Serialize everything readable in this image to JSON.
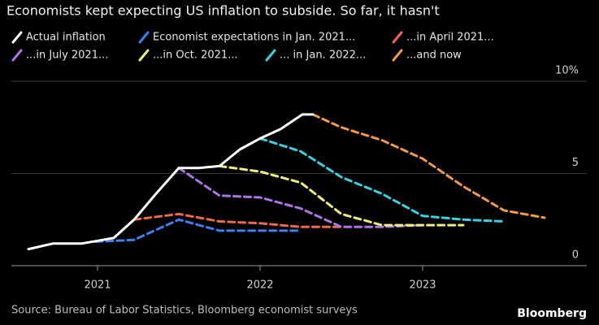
{
  "chart_data": {
    "type": "line",
    "title": "Economists kept expecting US inflation to subside. So far, it hasn't",
    "source": "Source: Bureau of Labor Statistics, Bloomberg economist surveys",
    "brand": "Bloomberg",
    "xlim": [
      2020.5,
      2023.9
    ],
    "xticks": [
      2021,
      2022,
      2023
    ],
    "ylim": [
      0,
      10
    ],
    "yticks": [
      0,
      5,
      {
        "value": 10,
        "label": "10%"
      }
    ],
    "grid": true,
    "series": [
      {
        "name": "Actual inflation",
        "color": "#ffffff",
        "line_style": "solid",
        "x": [
          2020.575,
          2020.725,
          2020.9,
          2021.1,
          2021.225,
          2021.35,
          2021.5,
          2021.625,
          2021.75,
          2021.875,
          2022.0,
          2022.125,
          2022.26,
          2022.325
        ],
        "values": [
          0.9,
          1.2,
          1.2,
          1.5,
          2.5,
          3.8,
          5.3,
          5.3,
          5.4,
          6.3,
          6.9,
          7.4,
          8.2,
          8.2
        ]
      },
      {
        "name": "Economist expectations in Jan. 2021...",
        "color": "#3d7ff0",
        "line_style": "dashed",
        "x": [
          2020.99,
          2021.225,
          2021.5,
          2021.75,
          2022.25
        ],
        "values": [
          1.3,
          1.4,
          2.5,
          1.9,
          1.9
        ]
      },
      {
        "name": "...in April 2021...",
        "color": "#f06a4a",
        "line_style": "dashed",
        "x": [
          2021.225,
          2021.5,
          2021.75,
          2022.0,
          2022.25,
          2022.5
        ],
        "values": [
          2.5,
          2.8,
          2.4,
          2.3,
          2.1,
          2.1
        ]
      },
      {
        "name": "...in July 2021...",
        "color": "#b173e6",
        "line_style": "dashed",
        "x": [
          2021.5,
          2021.75,
          2022.0,
          2022.25,
          2022.5,
          2022.75,
          2023.0
        ],
        "values": [
          5.3,
          3.8,
          3.7,
          3.1,
          2.1,
          2.1,
          2.2
        ]
      },
      {
        "name": "...in Oct. 2021...",
        "color": "#f2ee7a",
        "line_style": "dashed",
        "x": [
          2021.75,
          2022.0,
          2022.25,
          2022.5,
          2022.75,
          2023.0,
          2023.25
        ],
        "values": [
          5.4,
          5.1,
          4.5,
          2.8,
          2.2,
          2.2,
          2.2
        ]
      },
      {
        "name": "... in Jan. 2022...",
        "color": "#35d3e3",
        "line_style": "dashed",
        "x": [
          2022.0,
          2022.25,
          2022.5,
          2022.75,
          2023.0,
          2023.25,
          2023.5
        ],
        "values": [
          6.9,
          6.2,
          4.8,
          3.9,
          2.7,
          2.5,
          2.4
        ]
      },
      {
        "name": "...and now",
        "color": "#f29a4a",
        "line_style": "dashed",
        "x": [
          2022.325,
          2022.5,
          2022.75,
          2023.0,
          2023.25,
          2023.5,
          2023.75
        ],
        "values": [
          8.2,
          7.5,
          6.8,
          5.8,
          4.3,
          3.0,
          2.6
        ]
      }
    ]
  }
}
